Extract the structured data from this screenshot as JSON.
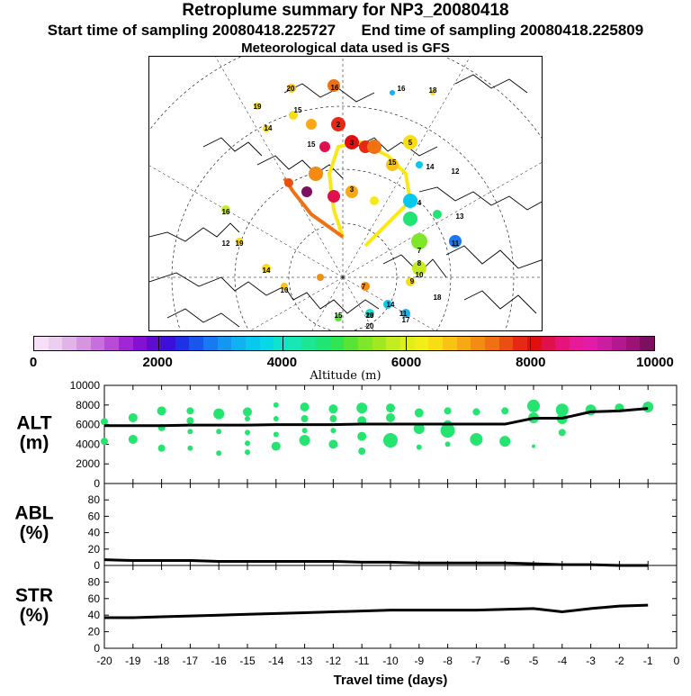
{
  "header": {
    "title": "Retroplume summary for NP3_20080418",
    "start_label": "Start time of sampling 20080418.225727",
    "end_label": "End time of sampling 20080418.225809",
    "met_label": "Meteorological data used is GFS"
  },
  "colorbar": {
    "title": "Altitude (m)",
    "tick_labels": [
      "0",
      "2000",
      "4000",
      "6000",
      "8000",
      "10000"
    ],
    "colors": [
      "#f6e0f6",
      "#eccfef",
      "#e0b4e8",
      "#d595e3",
      "#c86fdc",
      "#b84bd8",
      "#a127d5",
      "#8410d2",
      "#5f0bd0",
      "#3c10d6",
      "#2030e6",
      "#1a55ee",
      "#1a78f2",
      "#1596f0",
      "#10b2f0",
      "#08c8ee",
      "#06d8e6",
      "#10e2d0",
      "#18e6b4",
      "#1ce694",
      "#20e474",
      "#30e454",
      "#58e434",
      "#80e62a",
      "#a2e822",
      "#c4ec20",
      "#e0ee1c",
      "#f4ee18",
      "#f8dc14",
      "#f8c414",
      "#f8a814",
      "#f48c14",
      "#f07014",
      "#ea4e12",
      "#e42a14",
      "#e01010",
      "#e0104c",
      "#e41478",
      "#e81a9c",
      "#e01ca8",
      "#cc1ca0",
      "#b41890",
      "#9a1478",
      "#7c1060"
    ]
  },
  "chart_data": [
    {
      "type": "scatter+line",
      "panel": "ALT",
      "ylabel": "ALT\n(m)",
      "ylim": [
        0,
        10000
      ],
      "yticks": [
        0,
        2000,
        4000,
        6000,
        8000,
        10000
      ],
      "xlim": [
        -20,
        0
      ],
      "line": {
        "x": [
          -20,
          -19,
          -18,
          -17,
          -16,
          -15,
          -14,
          -13,
          -12,
          -11,
          -10,
          -9,
          -8,
          -7,
          -6,
          -5,
          -4,
          -3,
          -2,
          -1
        ],
        "y": [
          5900,
          5900,
          5900,
          5950,
          5950,
          5950,
          6000,
          6000,
          6000,
          6050,
          6050,
          6050,
          6050,
          6050,
          6050,
          6650,
          6650,
          7300,
          7400,
          7650
        ]
      },
      "points": [
        {
          "x": -20,
          "y": 6300,
          "s": 4
        },
        {
          "x": -20,
          "y": 4300,
          "s": 4
        },
        {
          "x": -19,
          "y": 6700,
          "s": 5
        },
        {
          "x": -19,
          "y": 4500,
          "s": 5
        },
        {
          "x": -18,
          "y": 7400,
          "s": 5
        },
        {
          "x": -18,
          "y": 5700,
          "s": 4
        },
        {
          "x": -18,
          "y": 3600,
          "s": 4
        },
        {
          "x": -17,
          "y": 7400,
          "s": 4
        },
        {
          "x": -17,
          "y": 6400,
          "s": 4
        },
        {
          "x": -17,
          "y": 5300,
          "s": 3
        },
        {
          "x": -17,
          "y": 3600,
          "s": 3
        },
        {
          "x": -16,
          "y": 7100,
          "s": 6
        },
        {
          "x": -16,
          "y": 5300,
          "s": 3
        },
        {
          "x": -16,
          "y": 3100,
          "s": 3
        },
        {
          "x": -15,
          "y": 7300,
          "s": 5
        },
        {
          "x": -15,
          "y": 6600,
          "s": 3
        },
        {
          "x": -15,
          "y": 5200,
          "s": 3
        },
        {
          "x": -15,
          "y": 4100,
          "s": 3
        },
        {
          "x": -15,
          "y": 3200,
          "s": 3
        },
        {
          "x": -14,
          "y": 8000,
          "s": 3
        },
        {
          "x": -14,
          "y": 6600,
          "s": 3
        },
        {
          "x": -14,
          "y": 5000,
          "s": 3
        },
        {
          "x": -14,
          "y": 3800,
          "s": 5
        },
        {
          "x": -13,
          "y": 7800,
          "s": 5
        },
        {
          "x": -13,
          "y": 6600,
          "s": 4
        },
        {
          "x": -13,
          "y": 5400,
          "s": 3
        },
        {
          "x": -13,
          "y": 4400,
          "s": 6
        },
        {
          "x": -12,
          "y": 7600,
          "s": 5
        },
        {
          "x": -12,
          "y": 6600,
          "s": 4
        },
        {
          "x": -12,
          "y": 5400,
          "s": 3
        },
        {
          "x": -12,
          "y": 4000,
          "s": 5
        },
        {
          "x": -11,
          "y": 7700,
          "s": 6
        },
        {
          "x": -11,
          "y": 6400,
          "s": 5
        },
        {
          "x": -11,
          "y": 4800,
          "s": 5
        },
        {
          "x": -11,
          "y": 3300,
          "s": 4
        },
        {
          "x": -10,
          "y": 7700,
          "s": 5
        },
        {
          "x": -10,
          "y": 6700,
          "s": 5
        },
        {
          "x": -10,
          "y": 4400,
          "s": 8
        },
        {
          "x": -9,
          "y": 7200,
          "s": 5
        },
        {
          "x": -9,
          "y": 5600,
          "s": 6
        },
        {
          "x": -9,
          "y": 3700,
          "s": 3
        },
        {
          "x": -8,
          "y": 7400,
          "s": 4
        },
        {
          "x": -8,
          "y": 6000,
          "s": 5
        },
        {
          "x": -8,
          "y": 5400,
          "s": 8
        },
        {
          "x": -8,
          "y": 4000,
          "s": 3
        },
        {
          "x": -7,
          "y": 7300,
          "s": 4
        },
        {
          "x": -7,
          "y": 4500,
          "s": 7
        },
        {
          "x": -6,
          "y": 7400,
          "s": 4
        },
        {
          "x": -6,
          "y": 4300,
          "s": 6
        },
        {
          "x": -5,
          "y": 7900,
          "s": 7
        },
        {
          "x": -5,
          "y": 6700,
          "s": 6
        },
        {
          "x": -5,
          "y": 3800,
          "s": 2
        },
        {
          "x": -4,
          "y": 7500,
          "s": 7
        },
        {
          "x": -4,
          "y": 6600,
          "s": 6
        },
        {
          "x": -4,
          "y": 5200,
          "s": 4
        },
        {
          "x": -3,
          "y": 7500,
          "s": 6
        },
        {
          "x": -2,
          "y": 7700,
          "s": 5
        },
        {
          "x": -1,
          "y": 7800,
          "s": 6
        }
      ],
      "point_color": "#25e470"
    },
    {
      "type": "line",
      "panel": "ABL",
      "ylabel": "ABL\n(%)",
      "ylim": [
        0,
        100
      ],
      "yticks": [
        0,
        20,
        40,
        60,
        80
      ],
      "xlim": [
        -20,
        0
      ],
      "x": [
        -20,
        -19,
        -18,
        -17,
        -16,
        -15,
        -14,
        -13,
        -12,
        -11,
        -10,
        -9,
        -8,
        -7,
        -6,
        -5,
        -4,
        -3,
        -2,
        -1
      ],
      "y": [
        7,
        6,
        6,
        6,
        5,
        5,
        5,
        5,
        5,
        4,
        4,
        3,
        3,
        3,
        3,
        2,
        1,
        1,
        0,
        0
      ]
    },
    {
      "type": "line",
      "panel": "STR",
      "ylabel": "STR\n(%)",
      "ylim": [
        0,
        100
      ],
      "yticks": [
        0,
        20,
        40,
        60,
        80
      ],
      "xlim": [
        -20,
        0
      ],
      "xlabel": "Travel time (days)",
      "xtick_labels": [
        "-20",
        "-19",
        "-18",
        "-17",
        "-16",
        "-15",
        "-14",
        "-13",
        "-12",
        "-11",
        "-10",
        "-9",
        "-8",
        "-7",
        "-6",
        "-5",
        "-4",
        "-3",
        "-2",
        "-1",
        "0"
      ],
      "x": [
        -20,
        -19,
        -18,
        -17,
        -16,
        -15,
        -14,
        -13,
        -12,
        -11,
        -10,
        -9,
        -8,
        -7,
        -6,
        -5,
        -4,
        -3,
        -2,
        -1
      ],
      "y": [
        37,
        37,
        38,
        39,
        40,
        41,
        42,
        43,
        44,
        45,
        46,
        46,
        46,
        46,
        47,
        48,
        44,
        48,
        51,
        52
      ]
    }
  ],
  "map": {
    "labels": [
      {
        "text": "20"
      },
      {
        "text": "16"
      },
      {
        "text": "19"
      },
      {
        "text": "15"
      },
      {
        "text": "14"
      },
      {
        "text": "2"
      },
      {
        "text": "3"
      },
      {
        "text": "5"
      },
      {
        "text": "15"
      },
      {
        "text": "14"
      },
      {
        "text": "16"
      },
      {
        "text": "18"
      },
      {
        "text": "19"
      },
      {
        "text": "16"
      },
      {
        "text": "20"
      },
      {
        "text": "14"
      },
      {
        "text": "12"
      },
      {
        "text": "7"
      },
      {
        "text": "13"
      },
      {
        "text": "11"
      },
      {
        "text": "10"
      },
      {
        "text": "8"
      },
      {
        "text": "9"
      },
      {
        "text": "7"
      },
      {
        "text": "11"
      },
      {
        "text": "14"
      },
      {
        "text": "17"
      },
      {
        "text": "20"
      },
      {
        "text": "15"
      },
      {
        "text": "18"
      },
      {
        "text": "10"
      },
      {
        "text": "13"
      },
      {
        "text": "12"
      },
      {
        "text": "4"
      },
      {
        "text": "3"
      },
      {
        "text": "15"
      }
    ]
  }
}
